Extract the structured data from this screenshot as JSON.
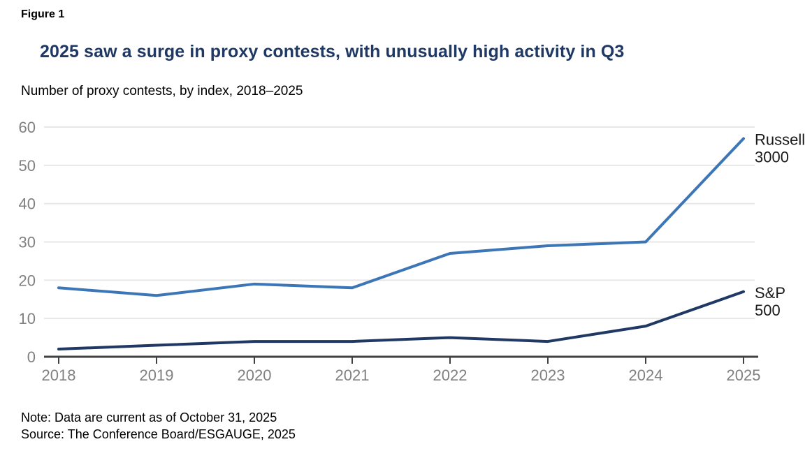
{
  "figure_label": "Figure 1",
  "title": "2025 saw a surge in proxy contests, with unusually high activity in Q3",
  "subtitle": "Number of proxy contests, by index, 2018–2025",
  "note": "Note: Data are current as of October 31, 2025",
  "source": "Source: The Conference Board/ESGAUGE, 2025",
  "colors": {
    "title_navy": "#1f3864",
    "russell_blue": "#3c76b7",
    "sp500_navy": "#1f3864",
    "grid_gray": "#e7e7e7",
    "axis_gray": "#404040",
    "tick_label_gray": "#808080",
    "label_black": "#1a1a1a"
  },
  "chart_data": {
    "type": "line",
    "title": "2025 saw a surge in proxy contests, with unusually high activity in Q3",
    "subtitle": "Number of proxy contests, by index, 2018–2025",
    "categories": [
      "2018",
      "2019",
      "2020",
      "2021",
      "2022",
      "2023",
      "2024",
      "2025"
    ],
    "series": [
      {
        "name": "Russell 3000",
        "label_lines": [
          "Russell",
          "3000"
        ],
        "color": "#3c76b7",
        "values": [
          18,
          16,
          19,
          18,
          27,
          29,
          30,
          57
        ]
      },
      {
        "name": "S&P 500",
        "label_lines": [
          "S&P",
          "500"
        ],
        "color": "#1f3864",
        "values": [
          2,
          3,
          4,
          4,
          5,
          4,
          8,
          17
        ]
      }
    ],
    "xlabel": "",
    "ylabel": "",
    "ylim": [
      0,
      60
    ],
    "ytick_step": 10,
    "yticks": [
      0,
      10,
      20,
      30,
      40,
      50,
      60
    ],
    "grid": "horizontal",
    "legend_position": "right-end-labels"
  }
}
